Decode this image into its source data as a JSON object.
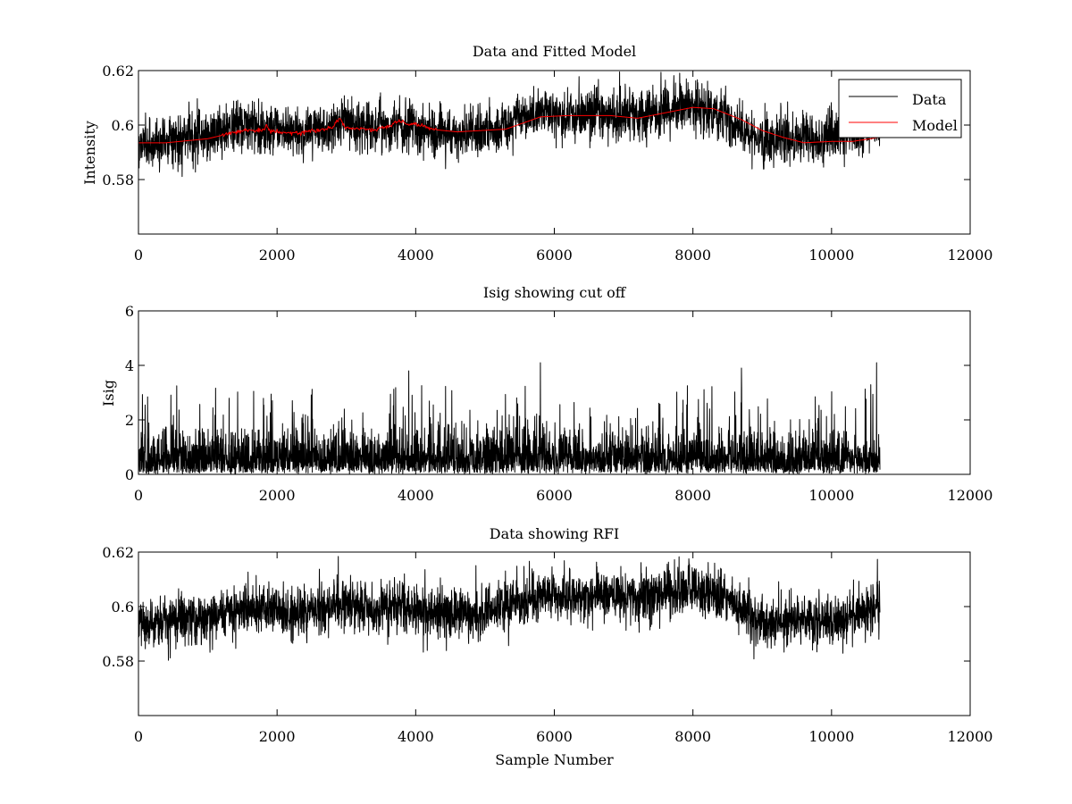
{
  "figure": {
    "xlabel": "Sample Number"
  },
  "chart_data": [
    {
      "type": "line",
      "title": "Data and Fitted Model",
      "xlabel": "",
      "ylabel": "Intensity",
      "xlim": [
        0,
        12000
      ],
      "ylim": [
        0.56,
        0.62
      ],
      "xticks": [
        0,
        2000,
        4000,
        6000,
        8000,
        10000,
        12000
      ],
      "xtick_labels": [
        "0",
        "2000",
        "4000",
        "6000",
        "8000",
        "10000",
        "12000"
      ],
      "yticks": [
        0.58,
        0.6,
        0.62
      ],
      "ytick_labels": [
        "0.58",
        "0.6",
        "0.62"
      ],
      "grid": false,
      "legend": {
        "placement": "top-right",
        "entries": [
          "Data",
          "Model"
        ]
      },
      "series": [
        {
          "name": "Data",
          "color": "#000000",
          "n_samples": 10700,
          "noise_sigma": 0.0045,
          "x": [
            0,
            500,
            1000,
            1500,
            1900,
            2300,
            2900,
            3400,
            3900,
            4300,
            4800,
            5300,
            5800,
            6200,
            6800,
            7200,
            7600,
            8000,
            8400,
            8800,
            9100,
            9500,
            10000,
            10400,
            10700
          ],
          "y": [
            0.593,
            0.595,
            0.596,
            0.6,
            0.599,
            0.597,
            0.601,
            0.599,
            0.6,
            0.597,
            0.597,
            0.6,
            0.605,
            0.603,
            0.604,
            0.603,
            0.605,
            0.607,
            0.604,
            0.597,
            0.594,
            0.594,
            0.595,
            0.598,
            0.6
          ]
        },
        {
          "name": "Model",
          "color": "#ff0000",
          "x": [
            0,
            400,
            1000,
            1500,
            1800,
            1850,
            1900,
            2300,
            2800,
            2900,
            2950,
            3000,
            3400,
            3800,
            3900,
            4000,
            4200,
            4600,
            5300,
            5800,
            6200,
            6800,
            7200,
            7600,
            8000,
            8300,
            8700,
            9000,
            9300,
            9600,
            10000,
            10300,
            10700
          ],
          "y": [
            0.5935,
            0.5935,
            0.595,
            0.598,
            0.598,
            0.6,
            0.598,
            0.597,
            0.599,
            0.6025,
            0.6005,
            0.599,
            0.598,
            0.6015,
            0.6,
            0.6005,
            0.5985,
            0.5975,
            0.5985,
            0.603,
            0.6035,
            0.6035,
            0.6025,
            0.6045,
            0.6065,
            0.606,
            0.602,
            0.598,
            0.5955,
            0.5935,
            0.594,
            0.594,
            0.5955
          ]
        }
      ]
    },
    {
      "type": "line",
      "title": "Isig showing cut off",
      "xlabel": "",
      "ylabel": "Isig",
      "xlim": [
        0,
        12000
      ],
      "ylim": [
        0,
        6
      ],
      "xticks": [
        0,
        2000,
        4000,
        6000,
        8000,
        10000,
        12000
      ],
      "xtick_labels": [
        "0",
        "2000",
        "4000",
        "6000",
        "8000",
        "10000",
        "12000"
      ],
      "yticks": [
        0,
        2,
        4,
        6
      ],
      "ytick_labels": [
        "0",
        "2",
        "4",
        "6"
      ],
      "grid": false,
      "series": [
        {
          "name": "Isig",
          "color": "#000000",
          "n_samples": 10700,
          "typical_max": 1.5,
          "peak_max": 4.1,
          "peaks": [
            {
              "x": 3900,
              "y": 3.8
            },
            {
              "x": 5800,
              "y": 4.1
            },
            {
              "x": 8700,
              "y": 3.9
            },
            {
              "x": 10650,
              "y": 4.1
            }
          ]
        }
      ]
    },
    {
      "type": "line",
      "title": "Data showing RFI",
      "xlabel": "Sample Number",
      "ylabel": "",
      "xlim": [
        0,
        12000
      ],
      "ylim": [
        0.56,
        0.62
      ],
      "xticks": [
        0,
        2000,
        4000,
        6000,
        8000,
        10000,
        12000
      ],
      "xtick_labels": [
        "0",
        "2000",
        "4000",
        "6000",
        "8000",
        "10000",
        "12000"
      ],
      "yticks": [
        0.58,
        0.6,
        0.62
      ],
      "ytick_labels": [
        "0.58",
        "0.6",
        "0.62"
      ],
      "grid": false,
      "series": [
        {
          "name": "Data",
          "color": "#000000",
          "n_samples": 10700,
          "noise_sigma": 0.0045,
          "x": [
            0,
            500,
            1000,
            1500,
            1900,
            2300,
            2900,
            3400,
            3900,
            4300,
            4800,
            5300,
            5800,
            6200,
            6800,
            7200,
            7600,
            8000,
            8400,
            8800,
            9100,
            9500,
            10000,
            10400,
            10700
          ],
          "y": [
            0.593,
            0.595,
            0.596,
            0.6,
            0.599,
            0.597,
            0.601,
            0.599,
            0.6,
            0.597,
            0.597,
            0.6,
            0.605,
            0.603,
            0.604,
            0.603,
            0.605,
            0.607,
            0.604,
            0.597,
            0.594,
            0.594,
            0.595,
            0.598,
            0.6
          ]
        }
      ]
    }
  ]
}
